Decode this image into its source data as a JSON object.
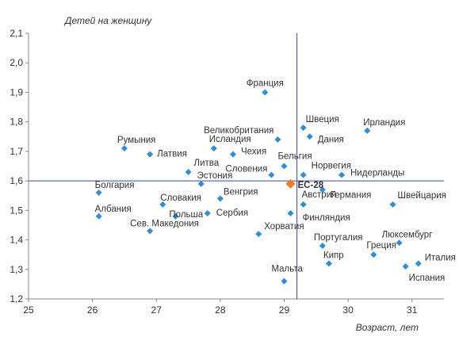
{
  "chart_data": {
    "type": "scatter",
    "title": "",
    "xlabel": "Возраст, лет",
    "ylabel": "Детей на женщину",
    "xlim": [
      25,
      31.5
    ],
    "ylim": [
      1.2,
      2.1
    ],
    "xticks": [
      "25",
      "26",
      "27",
      "28",
      "29",
      "30",
      "31"
    ],
    "yticks": [
      "1,2",
      "1,3",
      "1,4",
      "1,5",
      "1,6",
      "1,7",
      "1,8",
      "1,9",
      "2,0",
      "2,1"
    ],
    "grid": false,
    "reference_lines": {
      "x": 29.2,
      "y": 1.6
    },
    "colors": {
      "point": "#2e8fd6",
      "highlight": "#f07b2a",
      "reference_line": "#3a4a9a",
      "axis": "#888888"
    },
    "points": [
      {
        "name": "Франция",
        "x": 28.7,
        "y": 1.9
      },
      {
        "name": "Швеция",
        "x": 29.3,
        "y": 1.78
      },
      {
        "name": "Ирландия",
        "x": 30.3,
        "y": 1.77
      },
      {
        "name": "Великобритания",
        "x": 28.9,
        "y": 1.74
      },
      {
        "name": "Дания",
        "x": 29.4,
        "y": 1.75
      },
      {
        "name": "Румыния",
        "x": 26.5,
        "y": 1.71
      },
      {
        "name": "Латвия",
        "x": 26.9,
        "y": 1.69
      },
      {
        "name": "Исландия",
        "x": 27.9,
        "y": 1.71
      },
      {
        "name": "Чехия",
        "x": 28.2,
        "y": 1.69
      },
      {
        "name": "Бельгия",
        "x": 29.0,
        "y": 1.65
      },
      {
        "name": "Литва",
        "x": 27.5,
        "y": 1.63
      },
      {
        "name": "Словения",
        "x": 28.8,
        "y": 1.62
      },
      {
        "name": "Норвегия",
        "x": 29.3,
        "y": 1.62
      },
      {
        "name": "Нидерланды",
        "x": 29.9,
        "y": 1.62
      },
      {
        "name": "Эстония",
        "x": 27.7,
        "y": 1.59
      },
      {
        "name": "ЕС-28",
        "x": 29.1,
        "y": 1.59,
        "highlight": true
      },
      {
        "name": "Германия",
        "x": 29.6,
        "y": 1.57
      },
      {
        "name": "Болгария",
        "x": 26.1,
        "y": 1.56
      },
      {
        "name": "Венгрия",
        "x": 28.0,
        "y": 1.54
      },
      {
        "name": "Австрия",
        "x": 29.3,
        "y": 1.52
      },
      {
        "name": "Швейцария",
        "x": 30.7,
        "y": 1.52
      },
      {
        "name": "Словакия",
        "x": 27.1,
        "y": 1.52
      },
      {
        "name": "Сербия",
        "x": 27.8,
        "y": 1.49
      },
      {
        "name": "Польша",
        "x": 27.3,
        "y": 1.48
      },
      {
        "name": "Албания",
        "x": 26.1,
        "y": 1.48
      },
      {
        "name": "Финляндия",
        "x": 29.1,
        "y": 1.49
      },
      {
        "name": "Сев. Македония",
        "x": 26.9,
        "y": 1.43
      },
      {
        "name": "Хорватия",
        "x": 28.6,
        "y": 1.42
      },
      {
        "name": "Люксембург",
        "x": 30.8,
        "y": 1.39
      },
      {
        "name": "Португалия",
        "x": 29.6,
        "y": 1.38
      },
      {
        "name": "Греция",
        "x": 30.4,
        "y": 1.35
      },
      {
        "name": "Италия",
        "x": 31.1,
        "y": 1.32
      },
      {
        "name": "Кипр",
        "x": 29.7,
        "y": 1.32
      },
      {
        "name": "Испания",
        "x": 30.9,
        "y": 1.31
      },
      {
        "name": "Мальта",
        "x": 29.0,
        "y": 1.26
      }
    ]
  }
}
